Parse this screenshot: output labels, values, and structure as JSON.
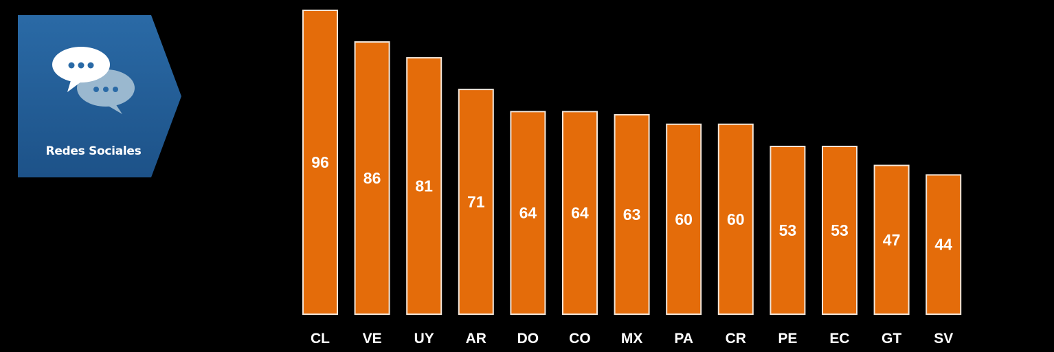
{
  "badge": {
    "label": "Redes Sociales",
    "icon": "chat-bubbles-icon",
    "color": "#1f5a8f"
  },
  "colors": {
    "background": "#000000",
    "bar_fill": "#e46c0a",
    "bar_stroke": "#f2e6da",
    "text": "#ffffff"
  },
  "chart_data": {
    "type": "bar",
    "categories": [
      "CL",
      "VE",
      "UY",
      "AR",
      "DO",
      "CO",
      "MX",
      "PA",
      "CR",
      "PE",
      "EC",
      "GT",
      "SV"
    ],
    "values": [
      96,
      86,
      81,
      71,
      64,
      64,
      63,
      60,
      60,
      53,
      53,
      47,
      44
    ],
    "title": "",
    "xlabel": "",
    "ylabel": "",
    "ylim": [
      0,
      96
    ],
    "grid": false,
    "legend": "none",
    "data_labels": true
  }
}
